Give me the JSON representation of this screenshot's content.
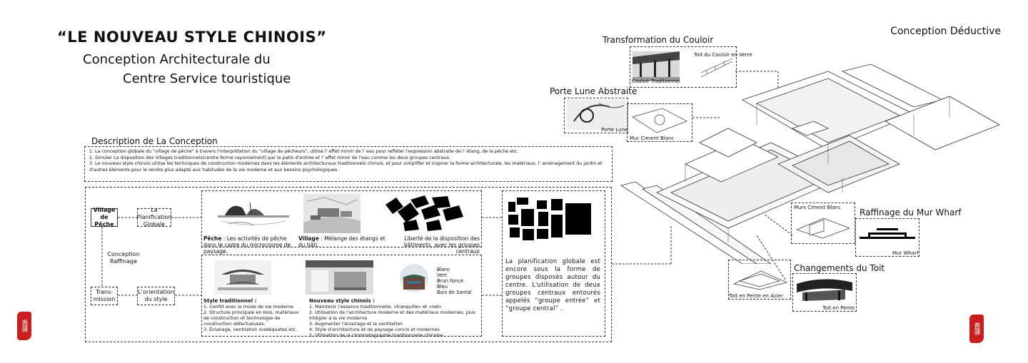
{
  "header": {
    "title": "“LE NOUVEAU STYLE CHINOIS”",
    "subtitle_line1": "Conception Architecturale du",
    "subtitle_line2": "Centre Service touristique",
    "concept_label": "Conception Déductive"
  },
  "description": {
    "heading": "Description de La Conception",
    "lines": [
      "1.  La conception globale du \"village de pêche\" à travers l'interprétation du \"village de pêcheurs\", utilise l' effet miroir de l' eau pour refléter l'expression abstraite de l' étang, de la pêche etc.",
      "2.  Simuler La disposition des Villages traditionnels(centre fermé rayonnement) par le patio d'entrée et l' effet miroir de l'eau comme les deux groupes centraux.",
      "3.  Le nouveau style chinois utilise les techniques de construction modernes dans les éléments architecturaux traditionnels chinois, et pour simplifier et inspirer la forme architecturale, les matériaux, l' aménagement du jardin et",
      "d'autres éléments pour le rendre plus adapté aux habitudes de la vie moderne et aux besoins psychologiques ."
    ]
  },
  "flow": {
    "village_peche": "Village de Pêche",
    "planification": "La Planification Globale",
    "conception": "Conception Raffinage",
    "transmission": "Trans- mission",
    "orientation": "L'orientation du style"
  },
  "top_row": {
    "peche_bold": "Pêche",
    "peche_text": " : Les activités de pêche dans le cadre du microcosme de paysage.",
    "village_bold": "Village",
    "village_text": " : Mélange des étangs et du bâti.",
    "liberte": "Liberté de la disposition des bâtiments, avec les groupes centraux"
  },
  "bottom_row": {
    "trad_title": "Style traditionnel :",
    "trad_items": [
      "1. Conflit avec le mode de vie moderne",
      "2. Structure principale en bois, matériaux de construction et technologie de construction défectueuses.",
      "3. Éclairage, ventilation inadéquates etc."
    ],
    "nouveau_title": "Nouveau style chinois :",
    "nouveau_items": [
      "1. Maintenir l'essence traditionnelle, «tranquille» et «net»",
      "2. Utilisation de l'architecture moderne et des matériaux modernes, plus intégrer à la vie moderne",
      "3. Augmenter l'éclairage et la ventilation",
      "4. Style d'architecture et de paysage concis et modernes",
      "5.  Utilisation de la chromatographie traditionnelle chinoise"
    ],
    "colors": [
      "Blanc",
      "Vert",
      "Brun foncé",
      "Bleu",
      "Bois de Santal"
    ]
  },
  "summary_note": "La planification globale est encore sous la forme de groupes disposés autour du centre. L'utilisation de deux groupes centraux entourés appelés “groupe entrée” et “groupe central” .",
  "callouts": {
    "couloir_title": "Transformation du Couloir",
    "couloir_trad": "Couloir Traditionnel",
    "couloir_verre": "Toit du Couloir en Verre",
    "porte_title": "Porte Lune Abstraite",
    "porte_lune": "Porte Lune",
    "mur_ciment": "Mur Ciment Blanc",
    "murs_ciment": "Murs  Ciment  Blanc",
    "raffinage_title": "Raffinage du Mur Wharf",
    "mur_wharf": "Mur Wharf",
    "toit_title": "Changements du Toit",
    "toit_acier": "Toit en Pente  en Acier",
    "toit_pente": "Toit en Pente"
  },
  "seal_text": "香驿",
  "colors": {
    "seal": "#c81e1e",
    "line": "#333333"
  }
}
